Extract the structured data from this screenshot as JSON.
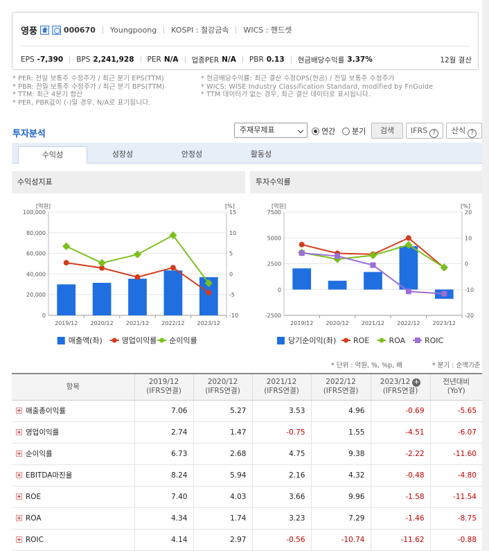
{
  "header": {
    "name": "영풍",
    "code": "000670",
    "english_name": "Youngpoong",
    "market": "KOSPI : 철강금속",
    "wics": "WICS : 핸드셋",
    "metrics": [
      {
        "label": "EPS",
        "value": "-7,390"
      },
      {
        "label": "BPS",
        "value": "2,241,928"
      },
      {
        "label": "PER",
        "value": "N/A"
      },
      {
        "label": "업종PER",
        "value": "N/A"
      },
      {
        "label": "PBR",
        "value": "0.13"
      },
      {
        "label": "현금배당수익률",
        "value": "3.37%"
      }
    ],
    "fiscal": "12월 결산"
  },
  "notes_left": [
    "* PER: 전일 보통주 수정주가 / 최근 분기 EPS(TTM)",
    "* PBR: 전일 보통주 수정주가 / 최근 분기 BPS(TTM)",
    "* TTM: 최근 4분기 합산",
    "* PER, PBR값이 (-)일 경우, N/A로 표기됩니다."
  ],
  "notes_right": [
    "* 현금배당수익률: 최근 결산 수정DPS(현금) / 전일 보통주 수정주가",
    "* WICS: WISE Industry Classification Standard, modified by FnGuide",
    "* TTM 데이터가 없는 경우, 최근 결산 데이터로 표시됩니다."
  ],
  "section_title": "투자분석",
  "controls": {
    "select": "주재무제표",
    "radio_annual": "연간",
    "radio_quarter": "분기",
    "search": "검색",
    "ifrs": "IFRS",
    "formula": "산식"
  },
  "tabs": [
    "수익성",
    "성장성",
    "안정성",
    "활동성"
  ],
  "panels": {
    "left_title": "수익성지표",
    "right_title": "투자수익률"
  },
  "unit_note": "* 단위 : 억원, %, %p, 배",
  "unit_note2": "* 분기 : 순액기준",
  "table": {
    "header_item": "항목",
    "columns": [
      {
        "year": "2019/12",
        "basis": "(IFRS연결)"
      },
      {
        "year": "2020/12",
        "basis": "(IFRS연결)"
      },
      {
        "year": "2021/12",
        "basis": "(IFRS연결)"
      },
      {
        "year": "2022/12",
        "basis": "(IFRS연결)"
      },
      {
        "year": "2023/12",
        "basis": "(IFRS연결)"
      },
      {
        "year": "전년대비",
        "basis": "(YoY)"
      }
    ],
    "rows": [
      {
        "label": "매출총이익률",
        "values": [
          "7.06",
          "5.27",
          "3.53",
          "4.96",
          "-0.69",
          "-5.65"
        ]
      },
      {
        "label": "영업이익률",
        "values": [
          "2.74",
          "1.47",
          "-0.75",
          "1.55",
          "-4.51",
          "-6.07"
        ]
      },
      {
        "label": "순이익률",
        "values": [
          "6.73",
          "2.68",
          "4.75",
          "9.38",
          "-2.22",
          "-11.60"
        ]
      },
      {
        "label": "EBITDA마진율",
        "values": [
          "8.24",
          "5.94",
          "2.16",
          "4.32",
          "-0.48",
          "-4.80"
        ]
      },
      {
        "label": "ROE",
        "values": [
          "7.40",
          "4.03",
          "3.66",
          "9.96",
          "-1.58",
          "-11.54"
        ]
      },
      {
        "label": "ROA",
        "values": [
          "4.34",
          "1.74",
          "3.23",
          "7.29",
          "-1.46",
          "-8.75"
        ]
      },
      {
        "label": "ROIC",
        "values": [
          "4.14",
          "2.97",
          "-0.56",
          "-10.74",
          "-11.62",
          "-0.88"
        ]
      }
    ]
  },
  "chart_data": [
    {
      "type": "bar",
      "title": "수익성지표",
      "categories": [
        "2019/12",
        "2020/12",
        "2021/12",
        "2022/12",
        "2023/12"
      ],
      "y_left_label": "[억원]",
      "y_right_label": "[%]",
      "ylim_left": [
        0,
        100000
      ],
      "ylim_right": [
        -10,
        15
      ],
      "yticks_left": [
        "100,000",
        "80,000",
        "60,000",
        "40,000",
        "20,000",
        "0"
      ],
      "yticks_right": [
        "15",
        "10",
        "5",
        "0",
        "-5",
        "-10"
      ],
      "series": [
        {
          "name": "매출액(좌)",
          "kind": "bar",
          "axis": "left",
          "color": "#1f6fe0",
          "values": [
            30000,
            31500,
            35500,
            43500,
            37000
          ]
        },
        {
          "name": "영업이익률",
          "kind": "line",
          "axis": "right",
          "color": "#d23c1e",
          "values": [
            2.74,
            1.47,
            -0.75,
            1.55,
            -4.51
          ]
        },
        {
          "name": "순이익률",
          "kind": "line",
          "axis": "right",
          "color": "#7cc01e",
          "values": [
            6.73,
            2.68,
            4.75,
            9.38,
            -2.22
          ]
        }
      ],
      "legend_position": "bottom"
    },
    {
      "type": "bar",
      "title": "투자수익률",
      "categories": [
        "2019/12",
        "2020/12",
        "2021/12",
        "2022/12",
        "2023/12"
      ],
      "y_left_label": "[억원]",
      "y_right_label": "[%]",
      "ylim_left": [
        -2500,
        7500
      ],
      "ylim_right": [
        -20,
        20
      ],
      "yticks_left": [
        "7500",
        "5000",
        "2500",
        "0",
        "-2500"
      ],
      "yticks_right": [
        "20",
        "10",
        "0",
        "-10",
        "-20"
      ],
      "series": [
        {
          "name": "당기순이익(좌)",
          "kind": "bar",
          "axis": "left",
          "color": "#1f6fe0",
          "values": [
            2050,
            850,
            1700,
            4200,
            -900
          ]
        },
        {
          "name": "ROE",
          "kind": "line",
          "axis": "right",
          "color": "#d23c1e",
          "values": [
            7.4,
            4.03,
            3.66,
            9.96,
            -1.58
          ]
        },
        {
          "name": "ROA",
          "kind": "line",
          "axis": "right",
          "color": "#7cc01e",
          "values": [
            4.34,
            1.74,
            3.23,
            7.29,
            -1.46
          ]
        },
        {
          "name": "ROIC",
          "kind": "line",
          "axis": "right",
          "color": "#9b6fd6",
          "marker": "square",
          "values": [
            4.14,
            2.97,
            -0.56,
            -10.74,
            -11.62
          ]
        }
      ],
      "legend_position": "bottom"
    }
  ]
}
